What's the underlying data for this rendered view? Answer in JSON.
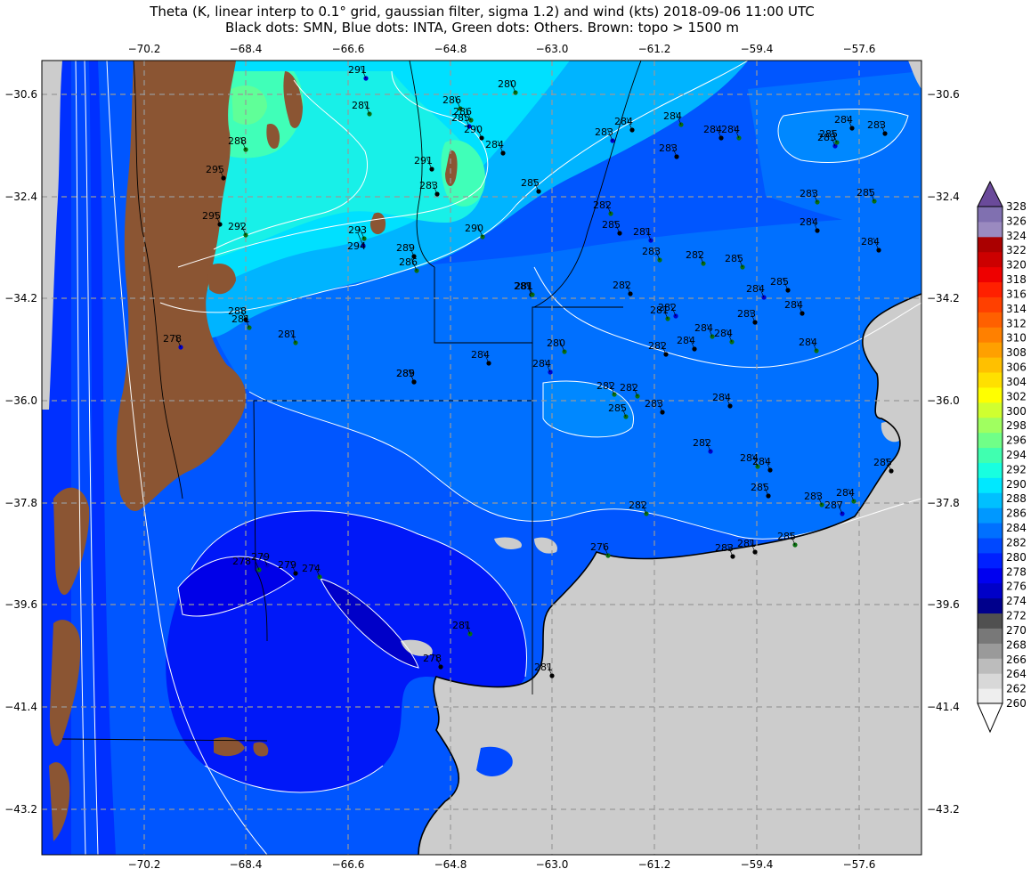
{
  "title": {
    "line1": "Theta (K, linear interp to 0.1° grid, gaussian filter, sigma 1.2) and wind (kts) 2018-09-06 11:00 UTC",
    "line2": "Black dots: SMN, Blue dots: INTA, Green dots: Others. Brown: topo > 1500 m"
  },
  "axes": {
    "lon_ticks": [
      "−70.2",
      "−68.4",
      "−66.6",
      "−64.8",
      "−63.0",
      "−61.2",
      "−59.4",
      "−57.6"
    ],
    "lat_ticks": [
      "−30.6",
      "−32.4",
      "−34.2",
      "−36.0",
      "−37.8",
      "−39.6",
      "−41.4",
      "−43.2"
    ]
  },
  "colorbar": {
    "levels": [
      "260",
      "262",
      "264",
      "266",
      "268",
      "270",
      "272",
      "274",
      "276",
      "278",
      "280",
      "282",
      "284",
      "286",
      "288",
      "290",
      "292",
      "294",
      "296",
      "298",
      "300",
      "302",
      "304",
      "306",
      "308",
      "310",
      "312",
      "314",
      "316",
      "318",
      "320",
      "322",
      "324",
      "326",
      "328"
    ],
    "colors": [
      "#ffffff",
      "#eeeeee",
      "#d8d8d8",
      "#bcbcbc",
      "#9a9a9a",
      "#787878",
      "#505050",
      "#00008c",
      "#0000c8",
      "#0000f0",
      "#0020ff",
      "#0048ff",
      "#0070ff",
      "#0098ff",
      "#00c0ff",
      "#00e8ff",
      "#18ffe0",
      "#40ffb0",
      "#70ff88",
      "#a0ff60",
      "#d0ff30",
      "#ffff00",
      "#ffe000",
      "#ffc000",
      "#ffa000",
      "#ff8000",
      "#ff6000",
      "#ff4000",
      "#ff2000",
      "#ee0000",
      "#cc0000",
      "#aa0000",
      "#9a8ac0",
      "#8070b0",
      "#6a4a9a"
    ]
  },
  "colors": {
    "land_outside": "#cccccc",
    "topo": "#8b5533",
    "contour": "#ffffff"
  },
  "stations": [
    {
      "t": "291"
    },
    {
      "t": "281"
    },
    {
      "t": "288"
    },
    {
      "t": "295"
    },
    {
      "t": "295"
    },
    {
      "t": "292"
    },
    {
      "t": "293"
    },
    {
      "t": "294"
    },
    {
      "t": "289"
    },
    {
      "t": "286"
    },
    {
      "t": "286"
    },
    {
      "t": "291"
    },
    {
      "t": "283"
    },
    {
      "t": "286"
    },
    {
      "t": "285"
    },
    {
      "t": "290"
    },
    {
      "t": "284"
    },
    {
      "t": "290"
    },
    {
      "t": "280"
    },
    {
      "t": "285"
    },
    {
      "t": "284"
    },
    {
      "t": "283"
    },
    {
      "t": "284"
    },
    {
      "t": "283"
    },
    {
      "t": "284"
    },
    {
      "t": "284"
    },
    {
      "t": "282"
    },
    {
      "t": "285"
    },
    {
      "t": "281"
    },
    {
      "t": "283"
    },
    {
      "t": "282"
    },
    {
      "t": "281"
    },
    {
      "t": "282"
    },
    {
      "t": "281"
    },
    {
      "t": "285"
    },
    {
      "t": "284"
    },
    {
      "t": "283"
    },
    {
      "t": "284"
    },
    {
      "t": "284"
    },
    {
      "t": "282"
    },
    {
      "t": "284"
    },
    {
      "t": "280"
    },
    {
      "t": "284"
    },
    {
      "t": "285"
    },
    {
      "t": "284"
    },
    {
      "t": "282"
    },
    {
      "t": "285"
    },
    {
      "t": "283"
    },
    {
      "t": "284"
    },
    {
      "t": "282"
    },
    {
      "t": "284"
    },
    {
      "t": "284"
    },
    {
      "t": "285"
    },
    {
      "t": "283"
    },
    {
      "t": "284"
    },
    {
      "t": "284"
    },
    {
      "t": "287"
    },
    {
      "t": "285"
    },
    {
      "t": "282"
    },
    {
      "t": "283"
    },
    {
      "t": "281"
    },
    {
      "t": "276"
    },
    {
      "t": "278"
    },
    {
      "t": "279"
    },
    {
      "t": "279"
    },
    {
      "t": "274"
    },
    {
      "t": "281"
    },
    {
      "t": "278"
    },
    {
      "t": "281"
    },
    {
      "t": "281"
    },
    {
      "t": "278"
    },
    {
      "t": "289"
    },
    {
      "t": "288"
    },
    {
      "t": "281"
    },
    {
      "t": "281"
    },
    {
      "t": "285"
    },
    {
      "t": "284"
    },
    {
      "t": "283"
    },
    {
      "t": "285"
    },
    {
      "t": "283"
    },
    {
      "t": "284"
    },
    {
      "t": "285"
    },
    {
      "t": "283"
    },
    {
      "t": "284"
    },
    {
      "t": "282"
    },
    {
      "t": "282"
    },
    {
      "t": "284"
    },
    {
      "t": "285"
    }
  ]
}
